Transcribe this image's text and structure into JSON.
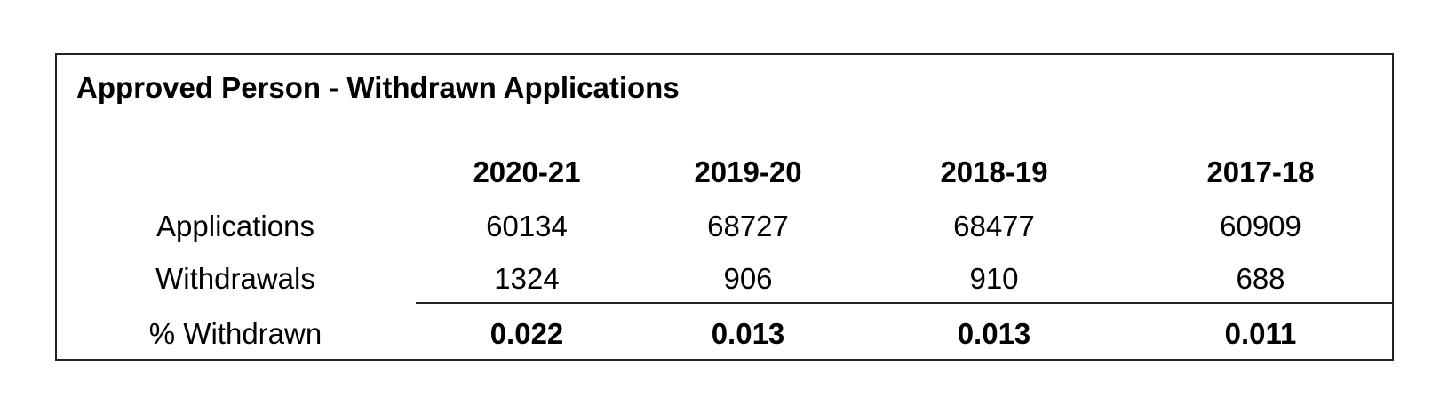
{
  "table": {
    "title": "Approved Person - Withdrawn Applications",
    "columns": [
      "2020-21",
      "2019-20",
      "2018-19",
      "2017-18"
    ],
    "rows": [
      {
        "label": "Applications",
        "values": [
          60134,
          68727,
          68477,
          60909
        ]
      },
      {
        "label": "Withdrawals",
        "values": [
          1324,
          906,
          910,
          688
        ]
      },
      {
        "label": "% Withdrawn",
        "values": [
          0.022,
          0.013,
          0.013,
          0.011
        ]
      }
    ]
  }
}
